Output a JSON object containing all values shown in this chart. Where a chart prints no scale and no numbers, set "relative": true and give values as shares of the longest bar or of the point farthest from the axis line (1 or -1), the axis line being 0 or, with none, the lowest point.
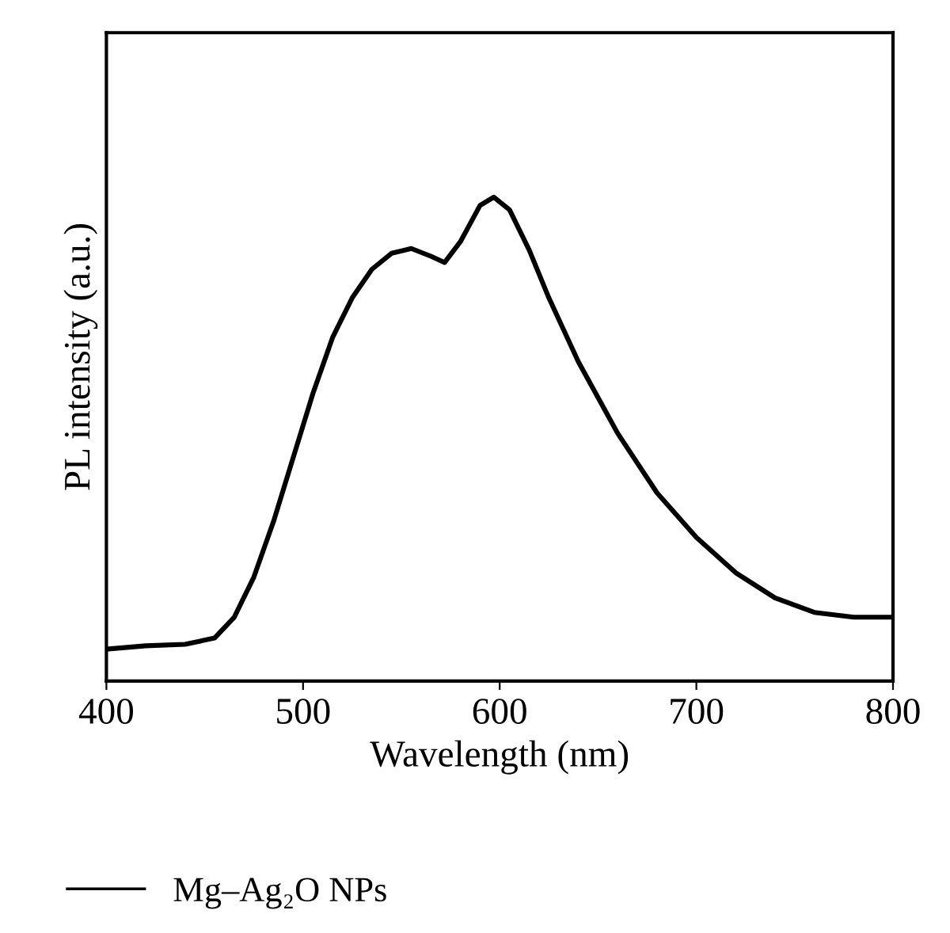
{
  "chart_data": {
    "type": "line",
    "xlabel": "Wavelength (nm)",
    "ylabel": "PL intensity (a.u.)",
    "relative": true,
    "xlim": [
      400,
      800
    ],
    "xticks": [
      400,
      500,
      600,
      700,
      800
    ],
    "grid": false,
    "legend": "bottom",
    "marker": "none",
    "line_style": "solid",
    "series": [
      {
        "name": "Mg–Ag₂O NPs",
        "color": "#000000",
        "x": [
          400,
          420,
          440,
          455,
          465,
          475,
          485,
          495,
          505,
          515,
          525,
          535,
          545,
          555,
          565,
          572,
          580,
          590,
          597,
          605,
          615,
          625,
          640,
          660,
          680,
          700,
          720,
          740,
          760,
          780,
          800
        ],
        "values": [
          0.066,
          0.073,
          0.076,
          0.089,
          0.132,
          0.215,
          0.33,
          0.462,
          0.594,
          0.71,
          0.792,
          0.851,
          0.884,
          0.894,
          0.878,
          0.865,
          0.908,
          0.983,
          1.0,
          0.974,
          0.891,
          0.792,
          0.66,
          0.512,
          0.389,
          0.297,
          0.224,
          0.172,
          0.142,
          0.132,
          0.132
        ]
      }
    ]
  }
}
